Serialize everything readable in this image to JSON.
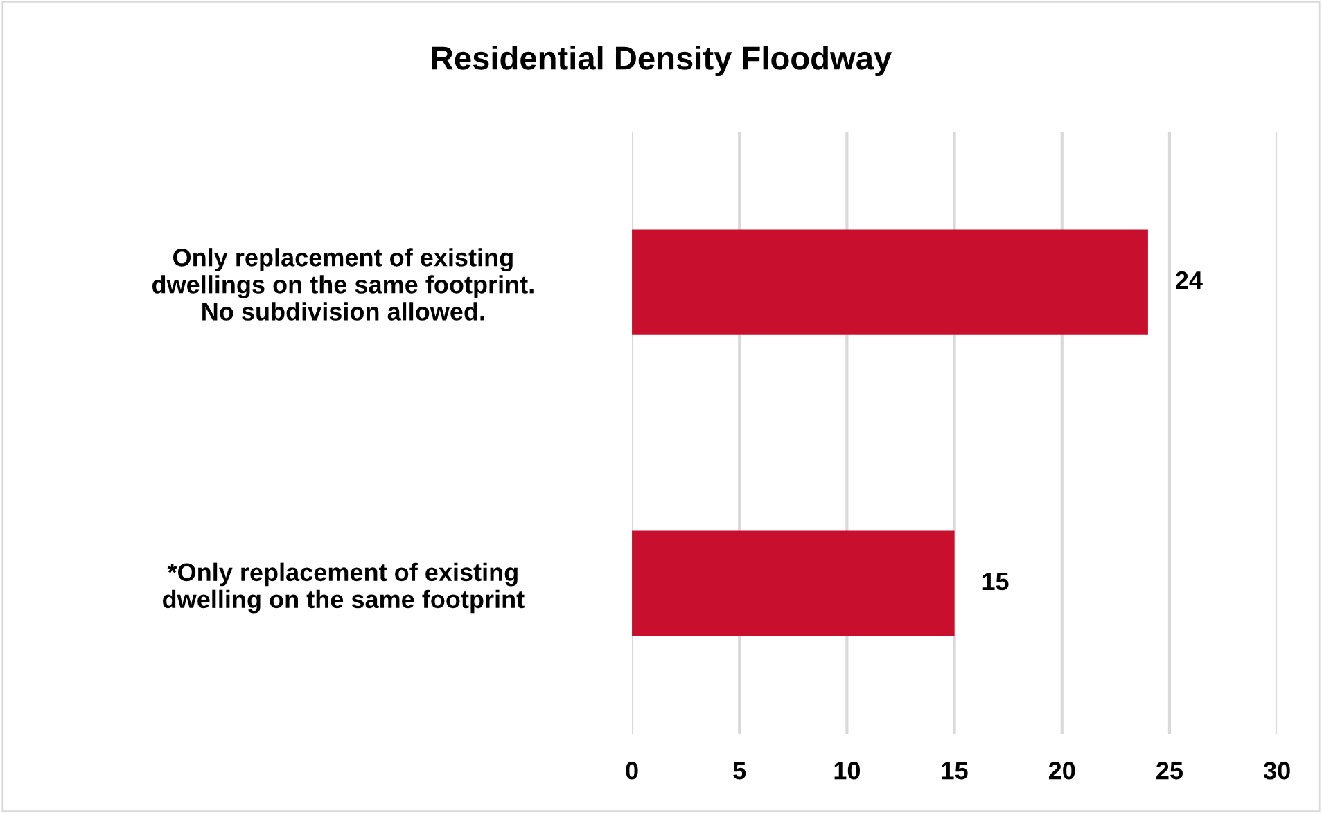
{
  "chart_data": {
    "type": "bar",
    "orientation": "horizontal",
    "title": "Residential Density Floodway",
    "categories": [
      "Only replacement of existing\ndwellings on the same footprint.\nNo subdivision allowed.",
      "*Only replacement of existing\ndwelling on the same footprint"
    ],
    "values": [
      24,
      15
    ],
    "color": "#c8102e",
    "xlim": [
      0,
      30
    ],
    "xticks": [
      0,
      5,
      10,
      15,
      20,
      25,
      30
    ],
    "grid": "x",
    "data_labels": true
  }
}
